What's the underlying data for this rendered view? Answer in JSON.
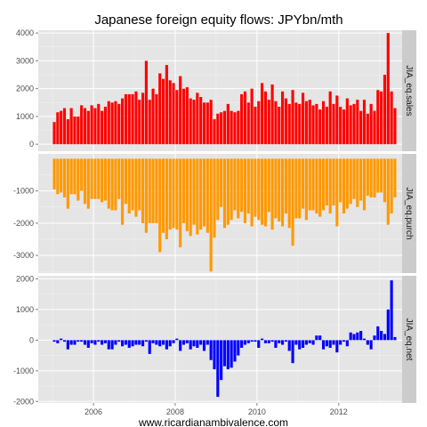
{
  "chart_data": {
    "type": "bar",
    "title": "Japanese foreign equity flows: JPYbn/mth",
    "credit": "www.ricardianambivalence.com",
    "background": "#e5e5e5",
    "grid": true,
    "x_ticks": [
      "2006",
      "2008",
      "2010",
      "2012"
    ],
    "x_tick_values": [
      2006,
      2008,
      2010,
      2012
    ],
    "xlim": [
      2004.65,
      2013.55
    ],
    "months": [
      "2005-01",
      "2005-02",
      "2005-03",
      "2005-04",
      "2005-05",
      "2005-06",
      "2005-07",
      "2005-08",
      "2005-09",
      "2005-10",
      "2005-11",
      "2005-12",
      "2006-01",
      "2006-02",
      "2006-03",
      "2006-04",
      "2006-05",
      "2006-06",
      "2006-07",
      "2006-08",
      "2006-09",
      "2006-10",
      "2006-11",
      "2006-12",
      "2007-01",
      "2007-02",
      "2007-03",
      "2007-04",
      "2007-05",
      "2007-06",
      "2007-07",
      "2007-08",
      "2007-09",
      "2007-10",
      "2007-11",
      "2007-12",
      "2008-01",
      "2008-02",
      "2008-03",
      "2008-04",
      "2008-05",
      "2008-06",
      "2008-07",
      "2008-08",
      "2008-09",
      "2008-10",
      "2008-11",
      "2008-12",
      "2009-01",
      "2009-02",
      "2009-03",
      "2009-04",
      "2009-05",
      "2009-06",
      "2009-07",
      "2009-08",
      "2009-09",
      "2009-10",
      "2009-11",
      "2009-12",
      "2010-01",
      "2010-02",
      "2010-03",
      "2010-04",
      "2010-05",
      "2010-06",
      "2010-07",
      "2010-08",
      "2010-09",
      "2010-10",
      "2010-11",
      "2010-12",
      "2011-01",
      "2011-02",
      "2011-03",
      "2011-04",
      "2011-05",
      "2011-06",
      "2011-07",
      "2011-08",
      "2011-09",
      "2011-10",
      "2011-11",
      "2011-12",
      "2012-01",
      "2012-02",
      "2012-03",
      "2012-04",
      "2012-05",
      "2012-06",
      "2012-07",
      "2012-08",
      "2012-09",
      "2012-10",
      "2012-11",
      "2012-12",
      "2013-01",
      "2013-02",
      "2013-03",
      "2013-04",
      "2013-05"
    ],
    "panels": [
      {
        "name": "JIA_eq.sales",
        "color": "#ff0000",
        "ylim": [
          -250,
          4100
        ],
        "y_ticks": [
          0,
          1000,
          2000,
          3000,
          4000
        ],
        "y_tick_labels": [
          "0",
          "1000",
          "2000",
          "3000",
          "4000"
        ],
        "values": [
          800,
          1150,
          1200,
          1300,
          900,
          1300,
          1000,
          1000,
          1400,
          1300,
          1200,
          1400,
          1300,
          1450,
          1200,
          1350,
          1550,
          1500,
          1550,
          1450,
          1650,
          1800,
          1800,
          1800,
          1900,
          1600,
          1850,
          3000,
          1600,
          2000,
          1800,
          2550,
          2350,
          2850,
          2300,
          2200,
          1950,
          2450,
          2000,
          2050,
          1650,
          1600,
          1850,
          1700,
          1500,
          1500,
          1600,
          900,
          1100,
          1150,
          1200,
          1450,
          1200,
          1150,
          1200,
          1800,
          1900,
          1500,
          2000,
          1350,
          1550,
          2200,
          1900,
          1600,
          2150,
          1550,
          1350,
          1900,
          1650,
          1450,
          1950,
          1500,
          1450,
          1850,
          1550,
          1600,
          1400,
          1450,
          1250,
          1550,
          1350,
          1900,
          1450,
          1750,
          1350,
          1250,
          1650,
          1400,
          1450,
          1600,
          1200,
          1600,
          1100,
          1450,
          1200,
          1950,
          1900,
          2500,
          4000,
          1900,
          1300
        ]
      },
      {
        "name": "JIA_eq.purch",
        "color": "#ff9900",
        "ylim": [
          -3550,
          150
        ],
        "y_ticks": [
          -1000,
          -2000,
          -3000
        ],
        "y_tick_labels": [
          "-1000",
          "-2000",
          "-3000"
        ],
        "values": [
          -950,
          -1100,
          -1050,
          -1200,
          -1550,
          -1100,
          -1100,
          -1300,
          -1000,
          -1400,
          -1550,
          -1250,
          -1250,
          -1250,
          -1350,
          -1300,
          -1550,
          -1600,
          -1600,
          -1250,
          -2050,
          -1400,
          -1700,
          -1600,
          -1800,
          -1600,
          -2000,
          -2300,
          -2000,
          -2000,
          -2000,
          -2900,
          -2300,
          -2500,
          -2200,
          -2150,
          -2200,
          -2750,
          -2000,
          -2250,
          -2400,
          -2050,
          -2350,
          -2200,
          -2100,
          -2300,
          -3500,
          -2450,
          -1900,
          -1500,
          -2150,
          -2050,
          -1900,
          -1600,
          -1850,
          -1650,
          -2000,
          -1700,
          -2100,
          -1800,
          -1900,
          -2050,
          -2100,
          -1650,
          -2200,
          -1850,
          -1950,
          -2100,
          -1700,
          -2150,
          -2700,
          -1850,
          -1850,
          -1550,
          -1900,
          -1600,
          -1600,
          -1700,
          -1800,
          -1600,
          -1450,
          -1700,
          -1450,
          -2100,
          -1350,
          -1700,
          -1550,
          -1400,
          -1250,
          -1500,
          -1300,
          -1600,
          -1150,
          -1200,
          -1200,
          -1050,
          -1050,
          -1350,
          -2050,
          -1700,
          -1200
        ]
      },
      {
        "name": "JIA_eq.net",
        "color": "#0000ff",
        "ylim": [
          -2050,
          2100
        ],
        "y_ticks": [
          -2000,
          -1000,
          0,
          1000,
          2000
        ],
        "y_tick_labels": [
          "-2000",
          "-1000",
          "0",
          "1000",
          "2000"
        ],
        "values": [
          -50,
          -100,
          50,
          -50,
          -300,
          -150,
          -150,
          -50,
          -50,
          -150,
          -250,
          -100,
          -150,
          -50,
          -150,
          -100,
          -300,
          -300,
          -150,
          -50,
          -200,
          -150,
          -250,
          -200,
          -150,
          -150,
          -200,
          -50,
          -450,
          -100,
          -150,
          -200,
          -150,
          -300,
          -200,
          -100,
          50,
          -350,
          -150,
          -100,
          -300,
          -200,
          -250,
          -150,
          -350,
          -150,
          -650,
          -950,
          -1850,
          -1300,
          -850,
          -950,
          -900,
          -700,
          -500,
          -250,
          -150,
          -100,
          -50,
          -50,
          -250,
          50,
          -100,
          -100,
          -50,
          -250,
          -100,
          -150,
          -50,
          -350,
          -750,
          -150,
          -300,
          -250,
          -150,
          -100,
          -150,
          150,
          150,
          -300,
          -200,
          -250,
          -150,
          -400,
          -150,
          -50,
          -200,
          250,
          200,
          250,
          300,
          50,
          -150,
          -300,
          150,
          450,
          300,
          200,
          1000,
          1950,
          100
        ]
      }
    ]
  }
}
